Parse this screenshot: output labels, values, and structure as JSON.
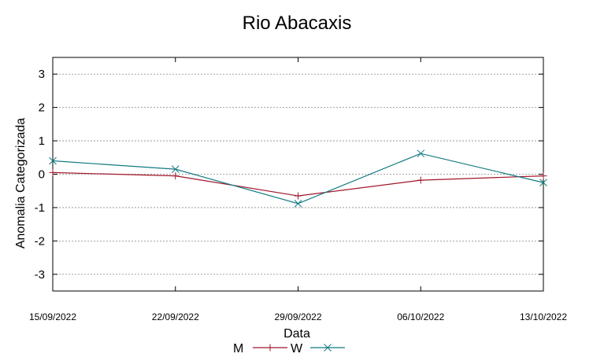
{
  "chart_data": {
    "type": "line",
    "title": "Rio Abacaxis",
    "xlabel": "Data",
    "ylabel": "Anomalia Categorizada",
    "categories": [
      "15/09/2022",
      "22/09/2022",
      "29/09/2022",
      "06/10/2022",
      "13/10/2022"
    ],
    "ylim": [
      -3.5,
      3.5
    ],
    "yticks": [
      3,
      2,
      1,
      0,
      -1,
      -2,
      -3
    ],
    "grid": true,
    "legend": "bottom",
    "series": [
      {
        "name": "M",
        "color": "#a0162a",
        "marker": "plus",
        "values": [
          0.05,
          -0.05,
          -0.65,
          -0.18,
          -0.05
        ]
      },
      {
        "name": "W",
        "color": "#117a82",
        "marker": "cross",
        "values": [
          0.4,
          0.15,
          -0.88,
          0.62,
          -0.25
        ]
      }
    ]
  }
}
